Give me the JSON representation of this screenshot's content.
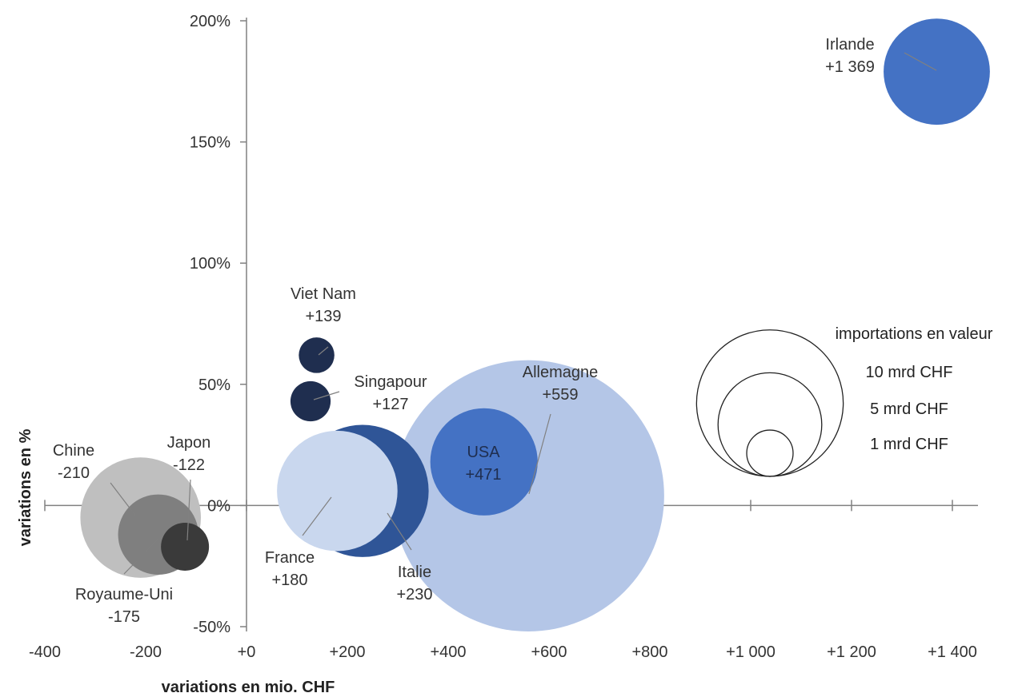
{
  "chart_data": {
    "type": "bubble",
    "xlabel": "variations en mio. CHF",
    "ylabel": "variations en %",
    "xlim": [
      -400,
      1400
    ],
    "ylim": [
      -50,
      200
    ],
    "x_ticks": [
      -400,
      -200,
      0,
      200,
      400,
      600,
      800,
      1000,
      1200,
      1400
    ],
    "x_tick_labels": [
      "-400",
      "-200",
      "+0",
      "+200",
      "+400",
      "+600",
      "+800",
      "+1 000",
      "+1 200",
      "+1 400"
    ],
    "y_ticks": [
      200,
      150,
      100,
      50,
      0,
      -50
    ],
    "y_tick_labels": [
      "200%",
      "150%",
      "100%",
      "50%",
      "0%",
      "-50%"
    ],
    "points": [
      {
        "name": "Allemagne",
        "value_label": "+559",
        "x": 559,
        "y": 4,
        "size_mrd": 32,
        "color": "#b4c6e7"
      },
      {
        "name": "Chine",
        "value_label": "-210",
        "x": -210,
        "y": -5,
        "size_mrd": 6.3,
        "color": "#bfbfbf"
      },
      {
        "name": "Italie",
        "value_label": "+230",
        "x": 230,
        "y": 6,
        "size_mrd": 7.6,
        "color": "#2f5597"
      },
      {
        "name": "France",
        "value_label": "+180",
        "x": 180,
        "y": 6,
        "size_mrd": 6.3,
        "color": "#c9d7ee"
      },
      {
        "name": "Royaume-Uni",
        "value_label": "-175",
        "x": -175,
        "y": -12,
        "size_mrd": 2.8,
        "color": "#7f7f7f"
      },
      {
        "name": "USA",
        "value_label": "+471",
        "x": 471,
        "y": 18,
        "size_mrd": 5,
        "color": "#4472c4"
      },
      {
        "name": "Irlande",
        "value_label": "+1 369",
        "x": 1369,
        "y": 179,
        "size_mrd": 4.9,
        "color": "#4472c4"
      },
      {
        "name": "Japon",
        "value_label": "-122",
        "x": -122,
        "y": -17,
        "size_mrd": 1,
        "color": "#3a3a3a"
      },
      {
        "name": "Viet Nam",
        "value_label": "+139",
        "x": 139,
        "y": 62,
        "size_mrd": 0.55,
        "color": "#1f2e4f"
      },
      {
        "name": "Singapour",
        "value_label": "+127",
        "x": 127,
        "y": 43,
        "size_mrd": 0.7,
        "color": "#1f2e4f"
      }
    ],
    "legend": {
      "title": "importations en valeur",
      "position": "right",
      "items": [
        {
          "label": "10 mrd CHF",
          "size_mrd": 10
        },
        {
          "label": "5 mrd CHF",
          "size_mrd": 5
        },
        {
          "label": "1 mrd CHF",
          "size_mrd": 1
        }
      ]
    }
  }
}
